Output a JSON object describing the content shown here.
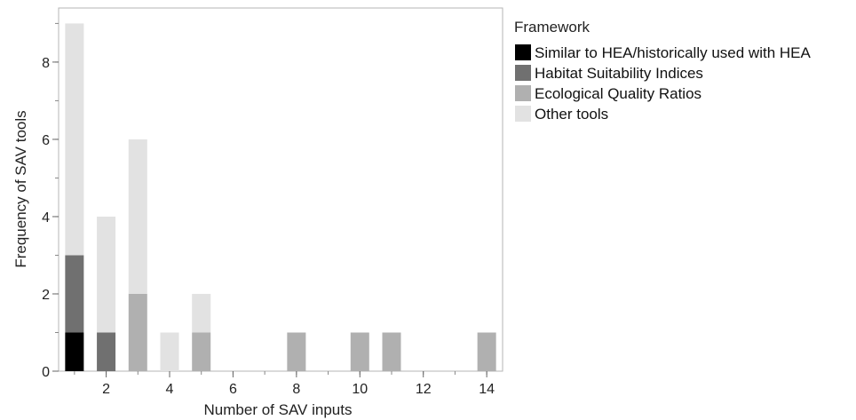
{
  "chart_data": {
    "type": "bar",
    "stacked": true,
    "title": "",
    "xlabel": "Number of SAV inputs",
    "ylabel": "Frequency of SAV tools",
    "xlim": [
      0.5,
      14.5
    ],
    "ylim": [
      0,
      9.4
    ],
    "x_ticks": [
      2,
      4,
      6,
      8,
      10,
      12,
      14
    ],
    "y_ticks": [
      0,
      2,
      4,
      6,
      8
    ],
    "grid": false,
    "legend_placement": "right",
    "legend_title": "Framework",
    "x": [
      1,
      2,
      3,
      4,
      5,
      8,
      10,
      11,
      14
    ],
    "series": [
      {
        "name": "Similar to HEA/historically used with HEA",
        "color": "#000000",
        "values": [
          1,
          0,
          0,
          0,
          0,
          0,
          0,
          0,
          0
        ]
      },
      {
        "name": "Habitat Suitability Indices",
        "color": "#707070",
        "values": [
          2,
          1,
          0,
          0,
          0,
          0,
          0,
          0,
          0
        ]
      },
      {
        "name": "Ecological Quality Ratios",
        "color": "#b0b0b0",
        "values": [
          0,
          0,
          2,
          0,
          1,
          1,
          1,
          1,
          1
        ]
      },
      {
        "name": "Other tools",
        "color": "#e2e2e2",
        "values": [
          6,
          3,
          4,
          1,
          1,
          0,
          0,
          0,
          0
        ]
      }
    ]
  }
}
